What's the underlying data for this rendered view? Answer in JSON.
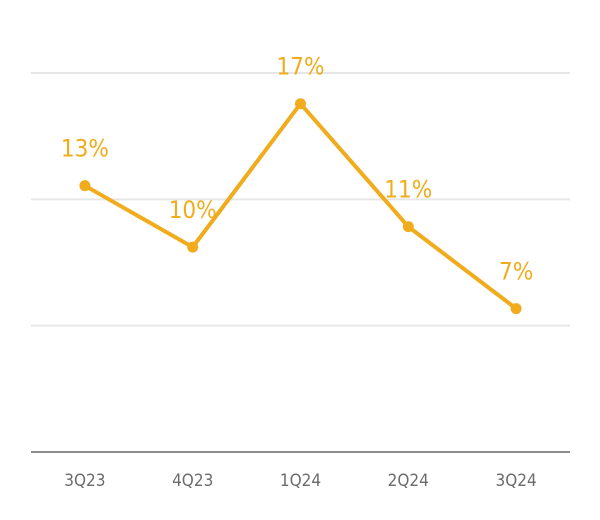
{
  "chart_data": {
    "type": "line",
    "categories": [
      "3Q23",
      "4Q23",
      "1Q24",
      "2Q24",
      "3Q24"
    ],
    "series": [
      {
        "values": [
          13,
          10,
          17,
          11,
          7
        ],
        "labels": [
          "13%",
          "10%",
          "17%",
          "11%",
          "7%"
        ]
      }
    ],
    "ylim": [
      0,
      18.5
    ],
    "grid": true,
    "legend": "none",
    "colors": {
      "series": "#f0ac1c",
      "grid": "#e6e6e6",
      "axis": "#8c8c8c",
      "tick_text": "#6b6b6b"
    }
  }
}
